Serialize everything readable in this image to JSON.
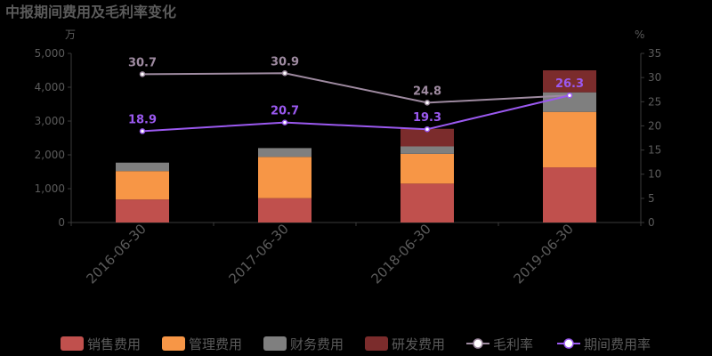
{
  "colors": {
    "background": "#000000",
    "text": "#5b5b5b",
    "axis": "#3a3a3a",
    "sales": "#c0504d",
    "admin": "#f79646",
    "finance": "#7f7f7f",
    "rd": "#7b2c2c",
    "gross_margin": "#9e8aa0",
    "period_expense": "#9b59f0"
  },
  "chart_data": {
    "type": "bar",
    "stacked": true,
    "title": "中报期间费用及毛利率变化",
    "left_unit": "万",
    "right_unit": "%",
    "categories": [
      "2016-06-30",
      "2017-06-30",
      "2018-06-30",
      "2019-06-30"
    ],
    "ylim_left": [
      0,
      5000
    ],
    "yticks_left": [
      "0",
      "1,000",
      "2,000",
      "3,000",
      "4,000",
      "5,000"
    ],
    "ylim_right": [
      0,
      35
    ],
    "yticks_right": [
      "0",
      "5",
      "10",
      "15",
      "20",
      "25",
      "30",
      "35"
    ],
    "series": [
      {
        "name": "销售费用",
        "color_key": "sales",
        "values": [
          680,
          720,
          1150,
          1630
        ]
      },
      {
        "name": "管理费用",
        "color_key": "admin",
        "values": [
          840,
          1220,
          880,
          1640
        ]
      },
      {
        "name": "财务费用",
        "color_key": "finance",
        "values": [
          250,
          260,
          220,
          580
        ]
      },
      {
        "name": "研发费用",
        "color_key": "rd",
        "values": [
          0,
          0,
          520,
          650
        ]
      }
    ],
    "lines": [
      {
        "name": "毛利率",
        "color_key": "gross_margin",
        "values": [
          30.7,
          30.9,
          24.8,
          26.3
        ],
        "labels": [
          "30.7",
          "30.9",
          "24.8",
          ""
        ]
      },
      {
        "name": "期间费用率",
        "color_key": "period_expense",
        "values": [
          18.9,
          20.7,
          19.3,
          26.3
        ],
        "labels": [
          "18.9",
          "20.7",
          "19.3",
          "26.3"
        ]
      }
    ],
    "legend_position": "bottom"
  }
}
